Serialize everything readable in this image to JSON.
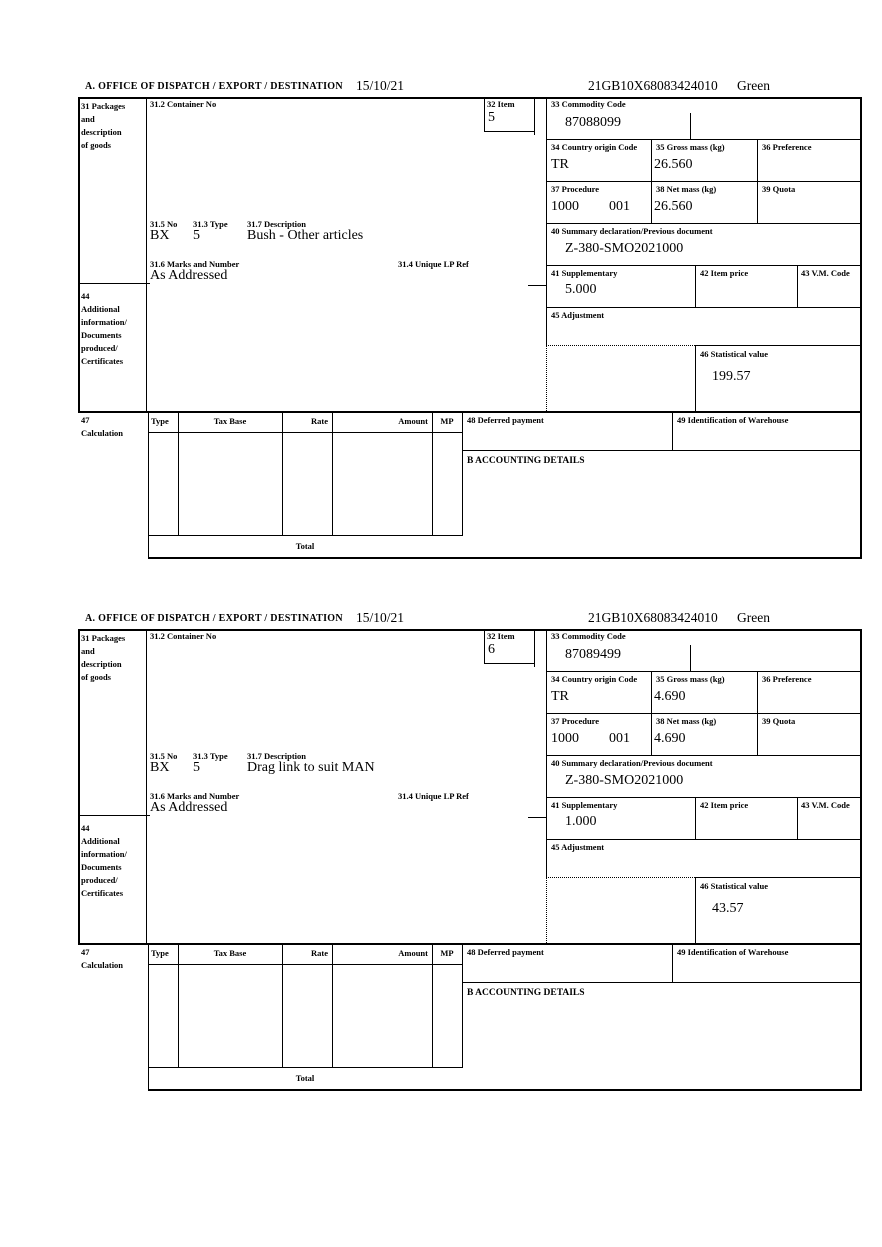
{
  "labels": {
    "office": "A.  OFFICE OF DISPATCH / EXPORT / DESTINATION",
    "b31": [
      "31 Packages",
      "and",
      "description",
      "of goods"
    ],
    "b31_2": "31.2 Container No",
    "b32": "32 Item",
    "b33": "33 Commodity Code",
    "b34": "34 Country origin Code",
    "b35": "35 Gross mass (kg)",
    "b36": "36 Preference",
    "b37": "37 Procedure",
    "b38": "38 Net mass (kg)",
    "b39": "39 Quota",
    "b40": "40 Summary declaration/Previous document",
    "b41": "41 Supplementary",
    "b42": "42 Item price",
    "b43": "43 V.M. Code",
    "b31_5": "31.5 No",
    "b31_3": "31.3 Type",
    "b31_7": "31.7 Description",
    "b31_6": "31.6 Marks and Number",
    "b31_4": "31.4 Unique LP Ref",
    "b44": [
      "44",
      "Additional",
      "information/",
      "Documents",
      "produced/",
      "Certificates"
    ],
    "b45": "45 Adjustment",
    "b46": "46 Statistical value",
    "b47": [
      "47",
      "Calculation"
    ],
    "calc_columns": [
      "Type",
      "Tax Base",
      "Rate",
      "Amount",
      "MP"
    ],
    "b48": "48 Deferred payment",
    "b49": "49 Identification of Warehouse",
    "accounting": "B ACCOUNTING DETAILS",
    "total": "Total"
  },
  "forms": [
    {
      "date": "15/10/21",
      "entry_number": "21GB10X68083424010",
      "route": "Green",
      "item": "5",
      "commodity_code": "87088099",
      "country_origin": "TR",
      "gross_mass": "26.560",
      "procedure": "1000",
      "procedure_code": "001",
      "net_mass": "26.560",
      "previous_document": "Z-380-SMO2021000",
      "supplementary": "5.000",
      "package_no": "BX",
      "package_type": "5",
      "description": "Bush - Other articles",
      "marks": "As Addressed",
      "statistical_value": "199.57"
    },
    {
      "date": "15/10/21",
      "entry_number": "21GB10X68083424010",
      "route": "Green",
      "item": "6",
      "commodity_code": "87089499",
      "country_origin": "TR",
      "gross_mass": "4.690",
      "procedure": "1000",
      "procedure_code": "001",
      "net_mass": "4.690",
      "previous_document": "Z-380-SMO2021000",
      "supplementary": "1.000",
      "package_no": "BX",
      "package_type": "5",
      "description": "Drag link to suit MAN",
      "marks": "As Addressed",
      "statistical_value": "43.57"
    }
  ]
}
